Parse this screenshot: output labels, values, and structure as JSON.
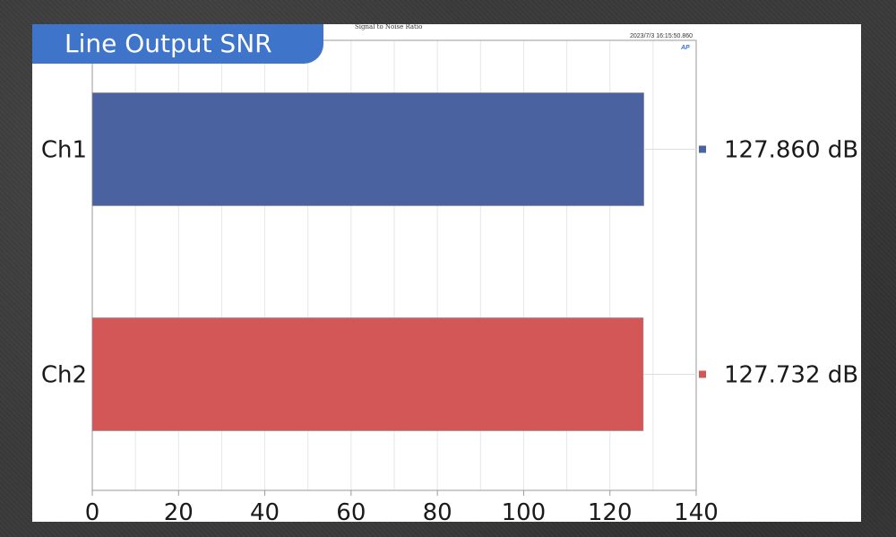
{
  "header": {
    "badge_title": "Line Output SNR",
    "subtitle": "Signal to Noise Ratio",
    "timestamp": "2023/7/3 16:15:50.860",
    "logo": "AP"
  },
  "chart_data": {
    "type": "bar",
    "orientation": "horizontal",
    "categories": [
      "Ch1",
      "Ch2"
    ],
    "values": [
      127.86,
      127.732
    ],
    "value_labels": [
      "127.860 dB",
      "127.732 dB"
    ],
    "colors": [
      "#4a63a0",
      "#d35757"
    ],
    "xlim": [
      0,
      140
    ],
    "xticks": [
      "0",
      "20",
      "40",
      "60",
      "80",
      "100",
      "120",
      "140"
    ],
    "grid": true,
    "legend": "right"
  }
}
